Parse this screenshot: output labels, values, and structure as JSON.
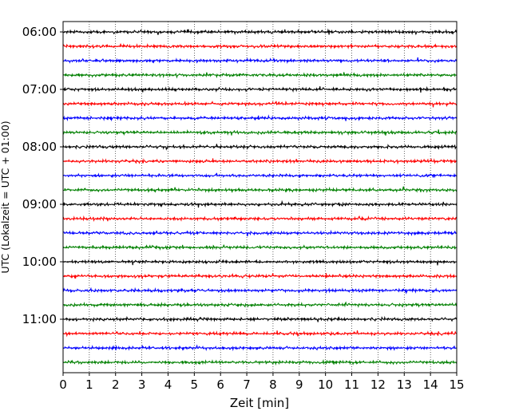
{
  "chart_data": {
    "type": "line",
    "subtype": "helicorder (drum seismogram)",
    "title": "",
    "xlabel": "Zeit  [min]",
    "ylabel": "UTC (Lokalzeit = UTC + 01:00)",
    "xlim": [
      0,
      15
    ],
    "x_ticks": [
      "0",
      "1",
      "2",
      "3",
      "4",
      "5",
      "6",
      "7",
      "8",
      "9",
      "10",
      "11",
      "12",
      "13",
      "14",
      "15"
    ],
    "x_grid": "dotted vertical lines at each minute",
    "y_ticks": [
      "06:00",
      "07:00",
      "08:00",
      "09:00",
      "10:00",
      "11:00"
    ],
    "trace_start": "06:00",
    "trace_interval_min": 15,
    "trace_count": 24,
    "trace_colors": [
      "#000000",
      "#ff0000",
      "#0000ff",
      "#008000"
    ],
    "series": [
      {
        "start": "06:00",
        "color": "#000000"
      },
      {
        "start": "06:15",
        "color": "#ff0000"
      },
      {
        "start": "06:30",
        "color": "#0000ff"
      },
      {
        "start": "06:45",
        "color": "#008000"
      },
      {
        "start": "07:00",
        "color": "#000000"
      },
      {
        "start": "07:15",
        "color": "#ff0000"
      },
      {
        "start": "07:30",
        "color": "#0000ff"
      },
      {
        "start": "07:45",
        "color": "#008000"
      },
      {
        "start": "08:00",
        "color": "#000000"
      },
      {
        "start": "08:15",
        "color": "#ff0000"
      },
      {
        "start": "08:30",
        "color": "#0000ff"
      },
      {
        "start": "08:45",
        "color": "#008000"
      },
      {
        "start": "09:00",
        "color": "#000000"
      },
      {
        "start": "09:15",
        "color": "#ff0000"
      },
      {
        "start": "09:30",
        "color": "#0000ff"
      },
      {
        "start": "09:45",
        "color": "#008000"
      },
      {
        "start": "10:00",
        "color": "#000000"
      },
      {
        "start": "10:15",
        "color": "#ff0000"
      },
      {
        "start": "10:30",
        "color": "#0000ff"
      },
      {
        "start": "10:45",
        "color": "#008000"
      },
      {
        "start": "11:00",
        "color": "#000000"
      },
      {
        "start": "11:15",
        "color": "#ff0000"
      },
      {
        "start": "11:30",
        "color": "#0000ff"
      },
      {
        "start": "11:45",
        "color": "#008000"
      }
    ]
  }
}
